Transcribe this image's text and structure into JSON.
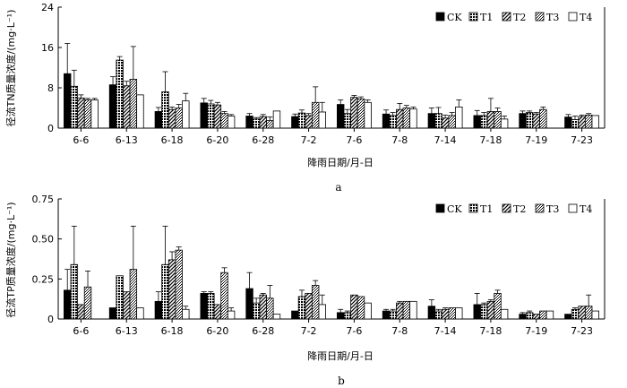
{
  "chart_data": [
    {
      "type": "bar",
      "panel_label": "a",
      "ylabel": "径流TN质量浓度/(mg·L⁻¹)",
      "xlabel": "降雨日期/月-日",
      "ylim": [
        0,
        24
      ],
      "yticks": [
        "0",
        "8",
        "16",
        "24"
      ],
      "categories": [
        "6-6",
        "6-13",
        "6-18",
        "6-20",
        "6-28",
        "7-2",
        "7-6",
        "7-8",
        "7-14",
        "7-18",
        "7-19",
        "7-23"
      ],
      "legend_position": "top-right",
      "series": [
        {
          "name": "CK",
          "values": [
            10.8,
            8.6,
            3.3,
            5.0,
            2.4,
            2.3,
            4.7,
            2.8,
            2.9,
            2.5,
            2.9,
            2.2
          ],
          "errors": [
            6.0,
            1.6,
            0.8,
            0.9,
            0.5,
            0.5,
            0.9,
            0.8,
            1.1,
            1.0,
            0.5,
            0.5
          ]
        },
        {
          "name": "T1",
          "values": [
            8.3,
            13.5,
            7.2,
            4.8,
            1.8,
            3.0,
            2.9,
            2.5,
            2.9,
            2.5,
            3.1,
            1.7
          ],
          "errors": [
            3.2,
            0.7,
            4.0,
            0.7,
            0.3,
            0.6,
            0.8,
            0.6,
            1.2,
            0.6,
            0.3,
            0.7
          ]
        },
        {
          "name": "T2",
          "values": [
            6.0,
            8.4,
            3.7,
            4.6,
            2.3,
            2.5,
            6.1,
            3.7,
            2.0,
            3.3,
            2.8,
            2.3
          ],
          "errors": [
            0.6,
            0.9,
            0.5,
            0.5,
            0.4,
            0.4,
            0.4,
            1.2,
            0.6,
            2.6,
            0.3,
            0.3
          ]
        },
        {
          "name": "T3",
          "values": [
            5.6,
            9.7,
            4.0,
            2.9,
            1.5,
            5.1,
            5.8,
            4.0,
            2.5,
            3.3,
            3.7,
            2.6
          ],
          "errors": [
            0.3,
            6.5,
            0.7,
            0.4,
            0.7,
            3.1,
            0.4,
            0.5,
            0.6,
            0.7,
            0.5,
            0.3
          ]
        },
        {
          "name": "T4",
          "values": [
            5.6,
            6.6,
            5.4,
            2.4,
            3.4,
            3.2,
            5.1,
            3.8,
            4.2,
            1.8,
            0.0,
            2.5
          ],
          "errors": [
            0.3,
            0.0,
            1.5,
            0.3,
            0.0,
            1.9,
            0.5,
            0.4,
            1.4,
            0.6,
            0.0,
            0.0
          ]
        }
      ]
    },
    {
      "type": "bar",
      "panel_label": "b",
      "ylabel": "径流TP质量浓度/(mg·L⁻¹)",
      "xlabel": "降雨日期/月-日",
      "ylim": [
        0,
        0.75
      ],
      "yticks": [
        "0",
        "0.25",
        "0.50",
        "0.75"
      ],
      "categories": [
        "6-6",
        "6-13",
        "6-18",
        "6-20",
        "6-28",
        "7-2",
        "7-6",
        "7-8",
        "7-14",
        "7-18",
        "7-19",
        "7-23"
      ],
      "legend_position": "top-right",
      "series": [
        {
          "name": "CK",
          "values": [
            0.18,
            0.07,
            0.11,
            0.16,
            0.19,
            0.05,
            0.04,
            0.05,
            0.08,
            0.09,
            0.03,
            0.03
          ],
          "errors": [
            0.13,
            0.0,
            0.06,
            0.01,
            0.1,
            0.0,
            0.02,
            0.01,
            0.04,
            0.07,
            0.01,
            0.0
          ]
        },
        {
          "name": "T1",
          "values": [
            0.34,
            0.27,
            0.34,
            0.16,
            0.1,
            0.14,
            0.04,
            0.05,
            0.05,
            0.09,
            0.04,
            0.06
          ],
          "errors": [
            0.24,
            0.0,
            0.24,
            0.01,
            0.03,
            0.04,
            0.01,
            0.01,
            0.01,
            0.01,
            0.01,
            0.01
          ]
        },
        {
          "name": "T2",
          "values": [
            0.09,
            0.17,
            0.37,
            0.09,
            0.15,
            0.16,
            0.15,
            0.1,
            0.06,
            0.11,
            0.03,
            0.08
          ],
          "errors": [
            0.0,
            0.0,
            0.05,
            0.0,
            0.01,
            0.0,
            0.0,
            0.01,
            0.01,
            0.01,
            0.0,
            0.0
          ]
        },
        {
          "name": "T3",
          "values": [
            0.2,
            0.31,
            0.43,
            0.29,
            0.13,
            0.21,
            0.14,
            0.11,
            0.07,
            0.16,
            0.05,
            0.08
          ],
          "errors": [
            0.1,
            0.27,
            0.02,
            0.03,
            0.08,
            0.03,
            0.0,
            0.0,
            0.0,
            0.02,
            0.0,
            0.07
          ]
        },
        {
          "name": "T4",
          "values": [
            0.0,
            0.07,
            0.06,
            0.05,
            0.03,
            0.09,
            0.1,
            0.11,
            0.07,
            0.06,
            0.05,
            0.05
          ],
          "errors": [
            0.0,
            0.0,
            0.02,
            0.02,
            0.0,
            0.06,
            0.0,
            0.0,
            0.0,
            0.0,
            0.0,
            0.0
          ]
        }
      ]
    }
  ]
}
